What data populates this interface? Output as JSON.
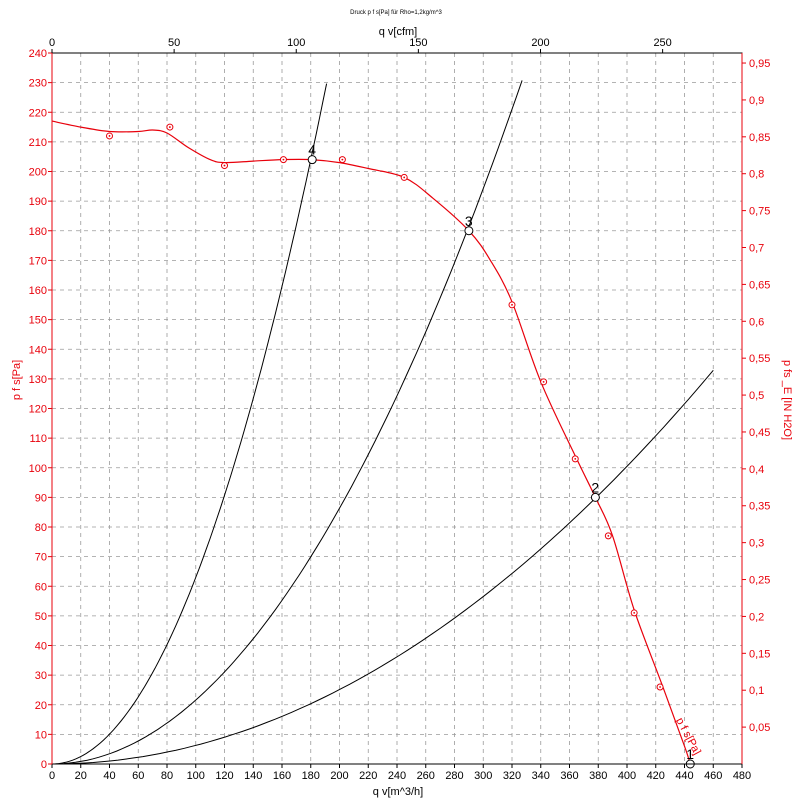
{
  "chart_data": {
    "type": "line",
    "title": "Druck p f s[Pa] für Rho=1,2kg/m^3",
    "xlabel": "q v[m^3/h]",
    "x2label": "q v[cfm]",
    "ylabel": "p  f s[Pa]",
    "y2label": "p fs _E [IN H2O]",
    "xlim": [
      0,
      480
    ],
    "ylim": [
      0,
      240
    ],
    "x2lim": [
      0,
      282.5
    ],
    "y2lim": [
      0,
      0.9636
    ],
    "xticks": [
      "0",
      "20",
      "40",
      "60",
      "80",
      "100",
      "120",
      "140",
      "160",
      "180",
      "200",
      "220",
      "240",
      "260",
      "280",
      "300",
      "320",
      "340",
      "360",
      "380",
      "400",
      "420",
      "440",
      "460",
      "480"
    ],
    "yticks": [
      "0",
      "10",
      "20",
      "30",
      "40",
      "50",
      "60",
      "70",
      "80",
      "90",
      "100",
      "110",
      "120",
      "130",
      "140",
      "150",
      "160",
      "170",
      "180",
      "190",
      "200",
      "210",
      "220",
      "230",
      "240"
    ],
    "x2ticks": [
      "0",
      "50",
      "100",
      "150",
      "200",
      "250"
    ],
    "y2ticks": [
      "0,05",
      "0,1",
      "0,15",
      "0,2",
      "0,25",
      "0,3",
      "0,35",
      "0,4",
      "0,45",
      "0,5",
      "0,55",
      "0,6",
      "0,65",
      "0,7",
      "0,75",
      "0,8",
      "0,85",
      "0,9",
      "0,95"
    ],
    "grid": true,
    "colors": {
      "fan": "#e8000b",
      "system": "#000000",
      "axis_left": "#e8000b",
      "axis_right": "#e8000b",
      "axis_bottom": "#000000",
      "axis_top": "#000000"
    },
    "fan_curve": {
      "name": "p  f s[Pa]",
      "x": [
        0,
        20,
        40,
        60,
        70,
        80,
        95,
        110,
        120,
        140,
        160,
        180,
        200,
        220,
        245,
        265,
        290,
        305,
        320,
        340,
        365,
        378,
        390,
        405,
        425,
        440,
        444
      ],
      "y": [
        217,
        215,
        213.5,
        213.5,
        214,
        213,
        208,
        204,
        203,
        203.5,
        204,
        204,
        203,
        201,
        198,
        191,
        180,
        170,
        156,
        129,
        103,
        90,
        77,
        52,
        26,
        6,
        0
      ]
    },
    "measured_points": {
      "x": [
        40,
        82,
        120,
        161,
        202,
        245,
        320,
        342,
        364,
        387,
        405,
        423
      ],
      "y": [
        212,
        215,
        202,
        204,
        204,
        198,
        155,
        129,
        103,
        77,
        51,
        26
      ]
    },
    "system_curves": [
      {
        "k": 0.000628,
        "x_end": 460,
        "label": "2"
      },
      {
        "k": 0.002158,
        "x_end": 327,
        "label": "3"
      },
      {
        "k": 0.006296,
        "x_end": 191,
        "label": "4"
      }
    ],
    "operating_points": [
      {
        "label": "1",
        "x": 444,
        "y": 0
      },
      {
        "label": "2",
        "x": 378,
        "y": 90
      },
      {
        "label": "3",
        "x": 290,
        "y": 180
      },
      {
        "label": "4",
        "x": 181,
        "y": 204
      }
    ]
  }
}
